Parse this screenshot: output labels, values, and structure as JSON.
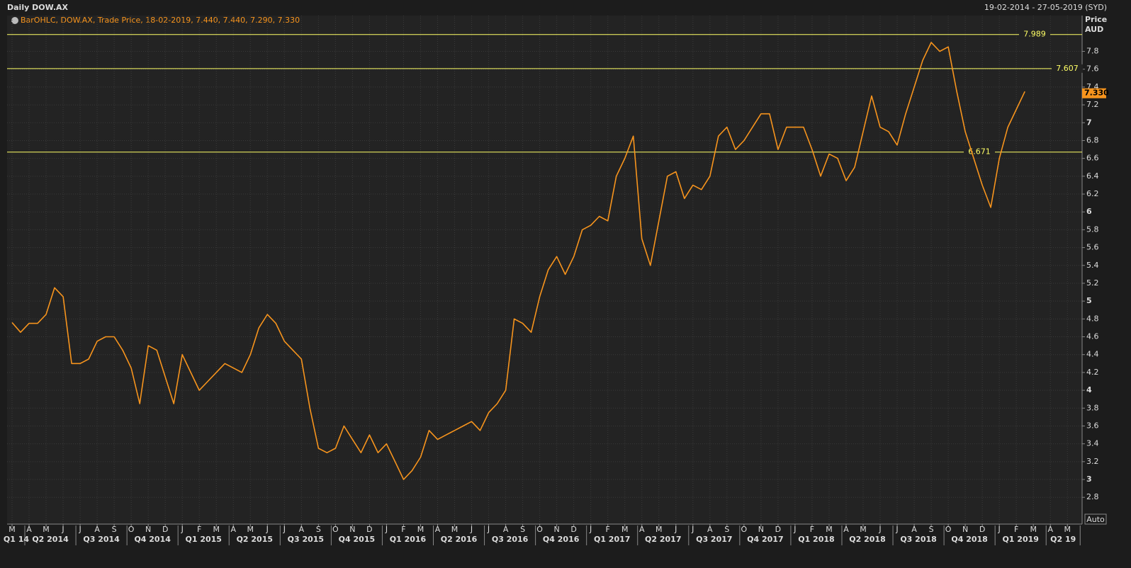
{
  "chart_data": {
    "type": "line",
    "title": "Daily DOW.AX",
    "date_range": "19-02-2014 - 27-05-2019 (SYD)",
    "legend_text": "BarOHLC, DOW.AX, Trade Price,  18-02-2019, 7.440, 7.440, 7.290, 7.330",
    "y_axis_label": "Price",
    "y_axis_unit": "AUD",
    "scale_mode": "Auto",
    "categories": [
      "M",
      null,
      "A",
      null,
      "M",
      null,
      "J",
      null,
      "J",
      null,
      "A",
      null,
      "S",
      null,
      "O",
      null,
      "N",
      null,
      "D",
      null,
      "J",
      null,
      "F",
      null,
      "M",
      null,
      "A",
      null,
      "M",
      null,
      "J",
      null,
      "J",
      null,
      "A",
      null,
      "S",
      null,
      "O",
      null,
      "N",
      null,
      "D",
      null,
      "J",
      null,
      "F",
      null,
      "M",
      null,
      "A",
      null,
      "M",
      null,
      "J",
      null,
      "J",
      null,
      "A",
      null,
      "S",
      null,
      "O",
      null,
      "N",
      null,
      "D",
      null,
      "J",
      null,
      "F",
      null,
      "M",
      null,
      "A",
      null,
      "M",
      null,
      "J",
      null,
      "J",
      null,
      "A",
      null,
      "S",
      null,
      "O",
      null,
      "N",
      null,
      "D",
      null,
      "J",
      null,
      "F",
      null,
      "M",
      null,
      "A",
      null,
      "M",
      null,
      "J",
      null,
      "J",
      null,
      "A",
      null,
      "S",
      null,
      "O",
      null,
      "N",
      null,
      "D",
      null,
      "J",
      null,
      "F",
      null,
      "M",
      null,
      "A",
      null,
      "M",
      null
    ],
    "quarters": [
      "Q1 14",
      "Q2 2014",
      "Q3 2014",
      "Q4 2014",
      "Q1 2015",
      "Q2 2015",
      "Q3 2015",
      "Q4 2015",
      "Q1 2016",
      "Q2 2016",
      "Q3 2016",
      "Q4 2016",
      "Q1 2017",
      "Q2 2017",
      "Q3 2017",
      "Q4 2017",
      "Q1 2018",
      "Q2 2018",
      "Q3 2018",
      "Q4 2018",
      "Q1 2019",
      "Q2 19"
    ],
    "series": [
      {
        "name": "DOW.AX",
        "color": "#f7941d",
        "values": [
          4.76,
          4.65,
          4.75,
          4.75,
          4.85,
          5.15,
          5.05,
          4.3,
          4.3,
          4.35,
          4.55,
          4.6,
          4.6,
          4.45,
          4.25,
          3.85,
          4.5,
          4.45,
          4.15,
          3.85,
          4.4,
          4.2,
          4.0,
          4.1,
          4.2,
          4.3,
          4.25,
          4.2,
          4.4,
          4.7,
          4.85,
          4.75,
          4.55,
          4.45,
          4.35,
          3.8,
          3.35,
          3.3,
          3.35,
          3.6,
          3.45,
          3.3,
          3.5,
          3.3,
          3.4,
          3.2,
          3.0,
          3.1,
          3.25,
          3.55,
          3.45,
          3.5,
          3.55,
          3.6,
          3.65,
          3.55,
          3.75,
          3.85,
          4.0,
          4.8,
          4.75,
          4.65,
          5.05,
          5.35,
          5.5,
          5.3,
          5.5,
          5.8,
          5.85,
          5.95,
          5.9,
          6.4,
          6.6,
          6.85,
          5.7,
          5.4,
          5.9,
          6.4,
          6.45,
          6.15,
          6.3,
          6.25,
          6.4,
          6.85,
          6.95,
          6.7,
          6.8,
          6.95,
          7.1,
          7.1,
          6.7,
          6.95,
          6.95,
          6.95,
          6.7,
          6.4,
          6.65,
          6.6,
          6.35,
          6.5,
          6.9,
          7.3,
          6.95,
          6.9,
          6.75,
          7.1,
          7.4,
          7.7,
          7.9,
          7.8,
          7.85,
          7.35,
          6.9,
          6.6,
          6.3,
          6.05,
          6.6,
          6.95,
          7.15,
          7.35,
          null,
          null,
          null,
          null,
          null,
          null
        ]
      }
    ],
    "levels": [
      {
        "value": 7.989,
        "color": "#ffff66"
      },
      {
        "value": 7.607,
        "color": "#ffff66"
      },
      {
        "value": 6.671,
        "color": "#ffff66"
      }
    ],
    "last_price": {
      "value": 7.33,
      "label": "7.330"
    },
    "ylim": [
      2.5,
      8.09
    ],
    "yticks": [
      2.8,
      3,
      3.2,
      3.4,
      3.6,
      3.8,
      4,
      4.2,
      4.4,
      4.6,
      4.8,
      5,
      5.2,
      5.4,
      5.6,
      5.8,
      6,
      6.2,
      6.4,
      6.6,
      6.8,
      7,
      7.2,
      7.4,
      7.6,
      7.8
    ],
    "grid": true
  }
}
